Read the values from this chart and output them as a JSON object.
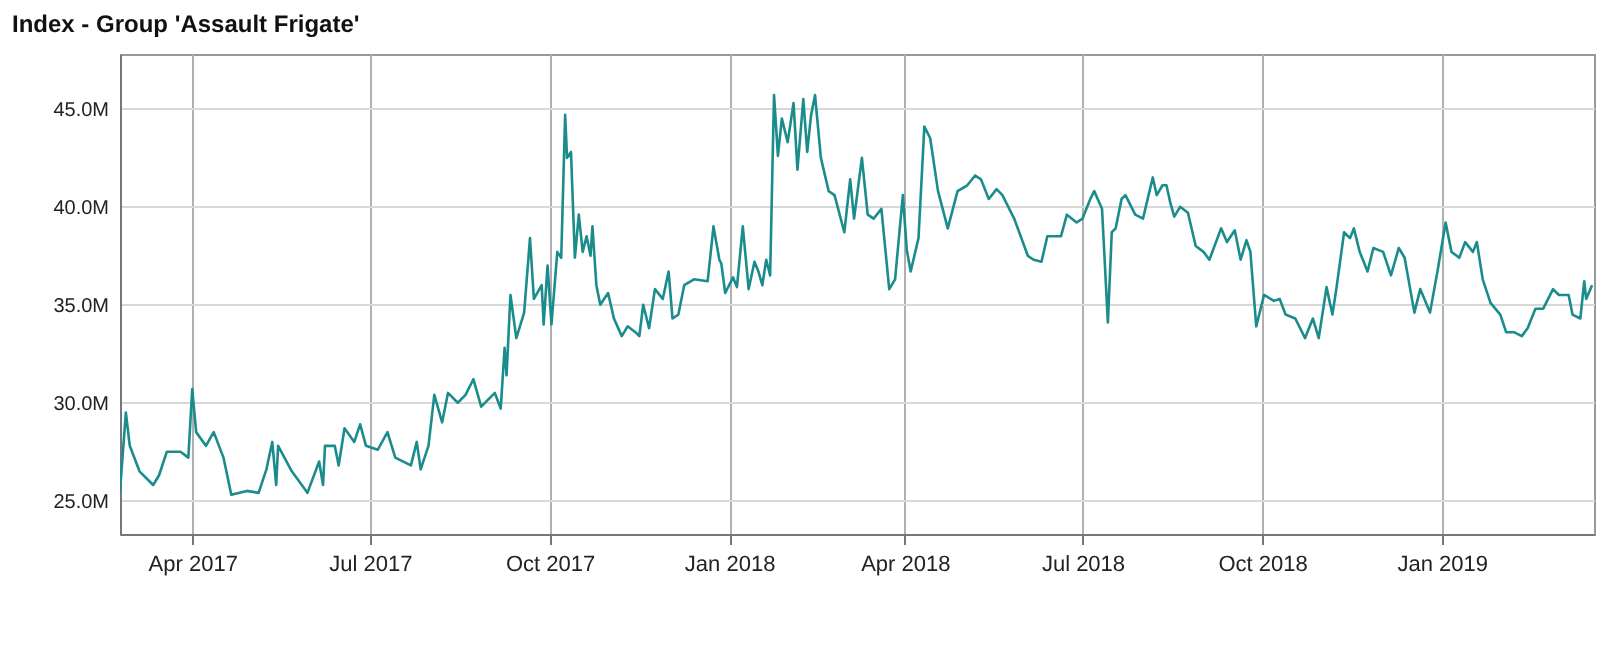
{
  "chart_data": {
    "type": "line",
    "title": "Index - Group 'Assault Frigate'",
    "x": [
      "2017-02-23",
      "2017-02-26",
      "2017-02-28",
      "2017-03-05",
      "2017-03-12",
      "2017-03-15",
      "2017-03-19",
      "2017-03-26",
      "2017-03-30",
      "2017-04-01",
      "2017-04-03",
      "2017-04-08",
      "2017-04-12",
      "2017-04-17",
      "2017-04-21",
      "2017-04-29",
      "2017-05-05",
      "2017-05-09",
      "2017-05-12",
      "2017-05-14",
      "2017-05-15",
      "2017-05-22",
      "2017-05-30",
      "2017-06-05",
      "2017-06-07",
      "2017-06-08",
      "2017-06-13",
      "2017-06-15",
      "2017-06-18",
      "2017-06-23",
      "2017-06-26",
      "2017-06-29",
      "2017-07-05",
      "2017-07-10",
      "2017-07-14",
      "2017-07-22",
      "2017-07-25",
      "2017-07-27",
      "2017-07-31",
      "2017-08-03",
      "2017-08-07",
      "2017-08-10",
      "2017-08-15",
      "2017-08-19",
      "2017-08-23",
      "2017-08-27",
      "2017-09-03",
      "2017-09-06",
      "2017-09-08",
      "2017-09-09",
      "2017-09-11",
      "2017-09-14",
      "2017-09-18",
      "2017-09-21",
      "2017-09-23",
      "2017-09-27",
      "2017-09-28",
      "2017-09-30",
      "2017-10-02",
      "2017-10-05",
      "2017-10-07",
      "2017-10-09",
      "2017-10-10",
      "2017-10-12",
      "2017-10-14",
      "2017-10-16",
      "2017-10-18",
      "2017-10-20",
      "2017-10-22",
      "2017-10-23",
      "2017-10-25",
      "2017-10-27",
      "2017-10-31",
      "2017-11-03",
      "2017-11-07",
      "2017-11-10",
      "2017-11-14",
      "2017-11-16",
      "2017-11-18",
      "2017-11-21",
      "2017-11-24",
      "2017-11-28",
      "2017-12-01",
      "2017-12-03",
      "2017-12-06",
      "2017-12-09",
      "2017-12-14",
      "2017-12-21",
      "2017-12-24",
      "2017-12-27",
      "2017-12-28",
      "2017-12-30",
      "2018-01-03",
      "2018-01-05",
      "2018-01-08",
      "2018-01-11",
      "2018-01-14",
      "2018-01-16",
      "2018-01-18",
      "2018-01-20",
      "2018-01-22",
      "2018-01-24",
      "2018-01-26",
      "2018-01-28",
      "2018-01-31",
      "2018-02-03",
      "2018-02-05",
      "2018-02-08",
      "2018-02-10",
      "2018-02-12",
      "2018-02-14",
      "2018-02-17",
      "2018-02-21",
      "2018-02-24",
      "2018-03-01",
      "2018-03-04",
      "2018-03-06",
      "2018-03-10",
      "2018-03-13",
      "2018-03-16",
      "2018-03-20",
      "2018-03-24",
      "2018-03-27",
      "2018-03-31",
      "2018-04-02",
      "2018-04-04",
      "2018-04-08",
      "2018-04-11",
      "2018-04-14",
      "2018-04-18",
      "2018-04-23",
      "2018-04-28",
      "2018-05-03",
      "2018-05-07",
      "2018-05-10",
      "2018-05-14",
      "2018-05-18",
      "2018-05-21",
      "2018-05-27",
      "2018-06-03",
      "2018-06-06",
      "2018-06-10",
      "2018-06-13",
      "2018-06-20",
      "2018-06-23",
      "2018-06-28",
      "2018-07-01",
      "2018-07-05",
      "2018-07-07",
      "2018-07-11",
      "2018-07-14",
      "2018-07-16",
      "2018-07-18",
      "2018-07-21",
      "2018-07-23",
      "2018-07-28",
      "2018-08-01",
      "2018-08-06",
      "2018-08-08",
      "2018-08-11",
      "2018-08-13",
      "2018-08-15",
      "2018-08-17",
      "2018-08-20",
      "2018-08-24",
      "2018-08-28",
      "2018-09-01",
      "2018-09-04",
      "2018-09-10",
      "2018-09-13",
      "2018-09-17",
      "2018-09-20",
      "2018-09-23",
      "2018-09-25",
      "2018-09-28",
      "2018-10-02",
      "2018-10-07",
      "2018-10-10",
      "2018-10-13",
      "2018-10-18",
      "2018-10-23",
      "2018-10-27",
      "2018-10-30",
      "2018-11-03",
      "2018-11-06",
      "2018-11-08",
      "2018-11-12",
      "2018-11-15",
      "2018-11-17",
      "2018-11-20",
      "2018-11-24",
      "2018-11-27",
      "2018-12-02",
      "2018-12-06",
      "2018-12-10",
      "2018-12-13",
      "2018-12-18",
      "2018-12-21",
      "2018-12-26",
      "2018-12-30",
      "2019-01-03",
      "2019-01-06",
      "2019-01-10",
      "2019-01-13",
      "2019-01-17",
      "2019-01-19",
      "2019-01-22",
      "2019-01-26",
      "2019-01-31",
      "2019-02-03",
      "2019-02-07",
      "2019-02-11",
      "2019-02-14",
      "2019-02-18",
      "2019-02-22",
      "2019-02-27",
      "2019-03-02",
      "2019-03-07",
      "2019-03-09",
      "2019-03-13",
      "2019-03-15",
      "2019-03-16",
      "2019-03-19"
    ],
    "series": [
      {
        "color": "#1b8c8c",
        "values": [
          25.5,
          29.5,
          27.8,
          26.5,
          25.8,
          26.3,
          27.5,
          27.5,
          27.2,
          30.7,
          28.5,
          27.8,
          28.5,
          27.2,
          25.3,
          25.5,
          25.4,
          26.6,
          28,
          25.8,
          27.8,
          26.5,
          25.4,
          27,
          25.8,
          27.8,
          27.8,
          26.8,
          28.7,
          28,
          28.9,
          27.8,
          27.6,
          28.5,
          27.2,
          26.8,
          28,
          26.6,
          27.8,
          30.4,
          29,
          30.5,
          30,
          30.4,
          31.2,
          29.8,
          30.5,
          29.7,
          32.8,
          31.4,
          35.5,
          33.3,
          34.6,
          38.4,
          35.3,
          36,
          34,
          37,
          34,
          37.7,
          37.4,
          44.7,
          42.5,
          42.8,
          37.4,
          39.6,
          37.7,
          38.5,
          37.5,
          39,
          36,
          35,
          35.6,
          34.3,
          33.4,
          33.9,
          33.6,
          33.4,
          35,
          33.8,
          35.8,
          35.3,
          36.7,
          34.3,
          34.5,
          36,
          36.3,
          36.2,
          39,
          37.3,
          37.1,
          35.6,
          36.4,
          35.9,
          39,
          35.8,
          37.2,
          36.7,
          36,
          37.3,
          36.5,
          45.7,
          42.6,
          44.5,
          43.3,
          45.3,
          41.9,
          45.5,
          42.8,
          44.7,
          45.7,
          42.5,
          40.8,
          40.6,
          38.7,
          41.4,
          39.4,
          42.5,
          39.6,
          39.4,
          39.9,
          35.8,
          36.3,
          40.6,
          37.8,
          36.7,
          38.4,
          44.1,
          43.5,
          40.8,
          38.9,
          40.8,
          41.1,
          41.6,
          41.4,
          40.4,
          40.9,
          40.6,
          39.4,
          37.5,
          37.3,
          37.2,
          38.5,
          38.5,
          39.6,
          39.2,
          39.4,
          40.4,
          40.8,
          39.9,
          34.1,
          38.7,
          38.9,
          40.4,
          40.6,
          39.6,
          39.4,
          41.5,
          40.6,
          41.1,
          41.1,
          40.2,
          39.5,
          40,
          39.7,
          38,
          37.7,
          37.3,
          38.9,
          38.2,
          38.8,
          37.3,
          38.3,
          37.7,
          33.9,
          35.5,
          35.2,
          35.3,
          34.5,
          34.3,
          33.3,
          34.3,
          33.3,
          35.9,
          34.5,
          35.8,
          38.7,
          38.4,
          38.9,
          37.7,
          36.7,
          37.9,
          37.7,
          36.5,
          37.9,
          37.4,
          34.6,
          35.8,
          34.6,
          36.8,
          39.2,
          37.7,
          37.4,
          38.2,
          37.7,
          38.2,
          36.3,
          35.1,
          34.5,
          33.6,
          33.6,
          33.4,
          33.8,
          34.8,
          34.8,
          35.8,
          35.5,
          35.5,
          34.5,
          34.3,
          36.2,
          35.3,
          36
        ]
      }
    ],
    "xlim": [
      "2017-02-23",
      "2019-03-20"
    ],
    "xticks": [
      {
        "value": "2017-04-01",
        "label": "Apr 2017"
      },
      {
        "value": "2017-07-01",
        "label": "Jul 2017"
      },
      {
        "value": "2017-10-01",
        "label": "Oct 2017"
      },
      {
        "value": "2018-01-01",
        "label": "Jan 2018"
      },
      {
        "value": "2018-04-01",
        "label": "Apr 2018"
      },
      {
        "value": "2018-07-01",
        "label": "Jul 2018"
      },
      {
        "value": "2018-10-01",
        "label": "Oct 2018"
      },
      {
        "value": "2019-01-01",
        "label": "Jan 2019"
      }
    ],
    "ylim": [
      23.3,
      47.8
    ],
    "yticks": [
      {
        "value": 25,
        "label": "25.0M"
      },
      {
        "value": 30,
        "label": "30.0M"
      },
      {
        "value": 35,
        "label": "35.0M"
      },
      {
        "value": 40,
        "label": "40.0M"
      },
      {
        "value": 45,
        "label": "45.0M"
      }
    ],
    "grid": true,
    "marker": "none",
    "line_style": "solid"
  }
}
